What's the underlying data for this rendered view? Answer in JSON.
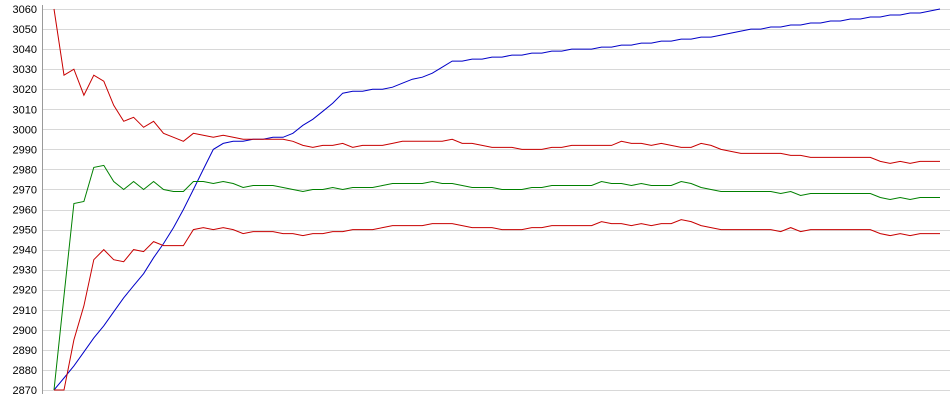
{
  "chart_data": {
    "type": "line",
    "title": "",
    "xlabel": "",
    "ylabel": "",
    "ylim": [
      2870,
      3060
    ],
    "y_tick_step": 10,
    "x_count": 90,
    "grid": "horizontal",
    "legend": "none",
    "series": [
      {
        "color": "#0000c8",
        "values": [
          2870,
          2876,
          2882,
          2889,
          2896,
          2902,
          2909,
          2916,
          2922,
          2928,
          2936,
          2943,
          2951,
          2960,
          2970,
          2980,
          2990,
          2993,
          2994,
          2994,
          2995,
          2995,
          2996,
          2996,
          2998,
          3002,
          3005,
          3009,
          3013,
          3018,
          3019,
          3019,
          3020,
          3020,
          3021,
          3023,
          3025,
          3026,
          3028,
          3031,
          3034,
          3034,
          3035,
          3035,
          3036,
          3036,
          3037,
          3037,
          3038,
          3038,
          3039,
          3039,
          3040,
          3040,
          3040,
          3041,
          3041,
          3042,
          3042,
          3043,
          3043,
          3044,
          3044,
          3045,
          3045,
          3046,
          3046,
          3047,
          3048,
          3049,
          3050,
          3050,
          3051,
          3051,
          3052,
          3052,
          3053,
          3053,
          3054,
          3054,
          3055,
          3055,
          3056,
          3056,
          3057,
          3057,
          3058,
          3058,
          3059,
          3060
        ]
      },
      {
        "color": "#c80000",
        "values": [
          3060,
          3027,
          3030,
          3017,
          3027,
          3024,
          3012,
          3004,
          3006,
          3001,
          3004,
          2998,
          2996,
          2994,
          2998,
          2997,
          2996,
          2997,
          2996,
          2995,
          2995,
          2995,
          2995,
          2995,
          2994,
          2992,
          2991,
          2992,
          2992,
          2993,
          2991,
          2992,
          2992,
          2992,
          2993,
          2994,
          2994,
          2994,
          2994,
          2994,
          2995,
          2993,
          2993,
          2992,
          2991,
          2991,
          2991,
          2990,
          2990,
          2990,
          2991,
          2991,
          2992,
          2992,
          2992,
          2992,
          2992,
          2994,
          2993,
          2993,
          2992,
          2993,
          2992,
          2991,
          2991,
          2993,
          2992,
          2990,
          2989,
          2988,
          2988,
          2988,
          2988,
          2988,
          2987,
          2987,
          2986,
          2986,
          2986,
          2986,
          2986,
          2986,
          2986,
          2984,
          2983,
          2984,
          2983,
          2984,
          2984,
          2984
        ]
      },
      {
        "color": "#008000",
        "values": [
          2870,
          2917,
          2963,
          2964,
          2981,
          2982,
          2974,
          2970,
          2974,
          2970,
          2974,
          2970,
          2969,
          2969,
          2974,
          2974,
          2973,
          2974,
          2973,
          2971,
          2972,
          2972,
          2972,
          2971,
          2970,
          2969,
          2970,
          2970,
          2971,
          2970,
          2971,
          2971,
          2971,
          2972,
          2973,
          2973,
          2973,
          2973,
          2974,
          2973,
          2973,
          2972,
          2971,
          2971,
          2971,
          2970,
          2970,
          2970,
          2971,
          2971,
          2972,
          2972,
          2972,
          2972,
          2972,
          2974,
          2973,
          2973,
          2972,
          2973,
          2972,
          2972,
          2972,
          2974,
          2973,
          2971,
          2970,
          2969,
          2969,
          2969,
          2969,
          2969,
          2969,
          2968,
          2969,
          2967,
          2968,
          2968,
          2968,
          2968,
          2968,
          2968,
          2968,
          2966,
          2965,
          2966,
          2965,
          2966,
          2966,
          2966
        ]
      },
      {
        "color": "#c80000",
        "values": [
          2870,
          2870,
          2895,
          2912,
          2935,
          2940,
          2935,
          2934,
          2940,
          2939,
          2944,
          2942,
          2942,
          2942,
          2950,
          2951,
          2950,
          2951,
          2950,
          2948,
          2949,
          2949,
          2949,
          2948,
          2948,
          2947,
          2948,
          2948,
          2949,
          2949,
          2950,
          2950,
          2950,
          2951,
          2952,
          2952,
          2952,
          2952,
          2953,
          2953,
          2953,
          2952,
          2951,
          2951,
          2951,
          2950,
          2950,
          2950,
          2951,
          2951,
          2952,
          2952,
          2952,
          2952,
          2952,
          2954,
          2953,
          2953,
          2952,
          2953,
          2952,
          2953,
          2953,
          2955,
          2954,
          2952,
          2951,
          2950,
          2950,
          2950,
          2950,
          2950,
          2950,
          2949,
          2951,
          2949,
          2950,
          2950,
          2950,
          2950,
          2950,
          2950,
          2950,
          2948,
          2947,
          2948,
          2947,
          2948,
          2948,
          2948
        ]
      }
    ]
  }
}
